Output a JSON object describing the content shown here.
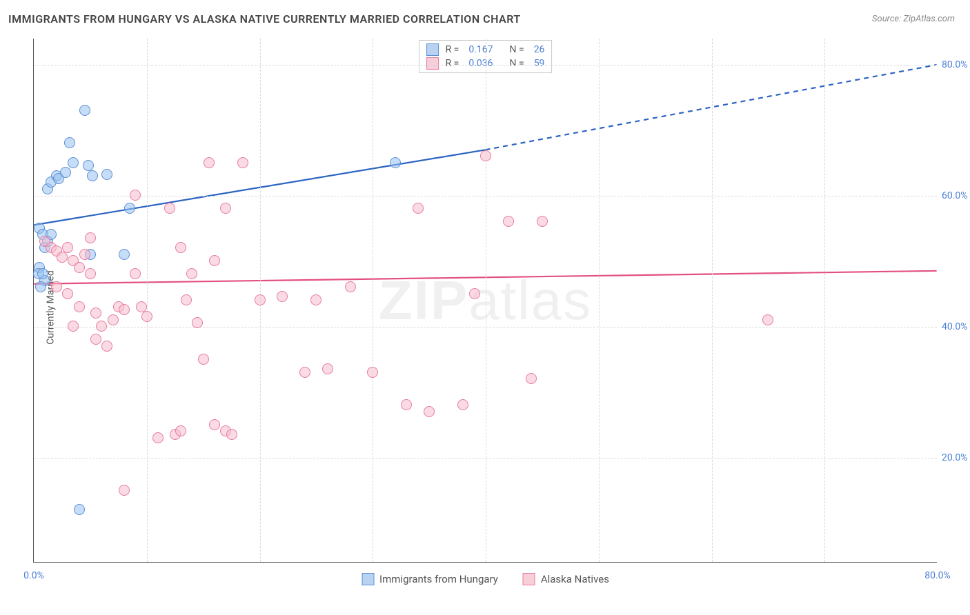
{
  "title": "IMMIGRANTS FROM HUNGARY VS ALASKA NATIVE CURRENTLY MARRIED CORRELATION CHART",
  "source_prefix": "Source: ",
  "source": "ZipAtlas.com",
  "watermark_bold": "ZIP",
  "watermark_rest": "atlas",
  "y_axis_label": "Currently Married",
  "axes": {
    "x_min": 0,
    "x_max": 80,
    "y_min": 4,
    "y_max": 84,
    "y_ticks": [
      20,
      40,
      60,
      80
    ],
    "y_tick_labels": [
      "20.0%",
      "40.0%",
      "60.0%",
      "80.0%"
    ],
    "x_ticks": [
      0,
      80
    ],
    "x_tick_labels": [
      "0.0%",
      "80.0%"
    ],
    "x_minor_grid": [
      10,
      20,
      30,
      40,
      50,
      60,
      70
    ],
    "grid_color": "#d8d8d8",
    "tick_label_color": "#4a7fd6",
    "tick_label_fontsize": 14
  },
  "legend_top": {
    "r_label": "R  =",
    "n_label": "N  =",
    "rows": [
      {
        "swatch_fill": "#b9d2f1",
        "swatch_border": "#5d8fd4",
        "r": "0.167",
        "n": "26"
      },
      {
        "swatch_fill": "#f7cfd9",
        "swatch_border": "#e77ba0",
        "r": "0.036",
        "n": "59"
      }
    ]
  },
  "legend_bottom": {
    "items": [
      {
        "swatch_fill": "#b9d2f1",
        "swatch_border": "#5d8fd4",
        "label": "Immigrants from Hungary"
      },
      {
        "swatch_fill": "#f7cfd9",
        "swatch_border": "#e77ba0",
        "label": "Alaska Natives"
      }
    ]
  },
  "series": [
    {
      "name": "hungary",
      "marker_fill": "rgba(151,193,240,0.55)",
      "marker_stroke": "#5d8fd4",
      "marker_radius": 8,
      "trend": {
        "x1": 0,
        "y1": 55.5,
        "x2": 40,
        "y2": 67.0,
        "x2_ext": 80,
        "y2_ext": 80.0,
        "color": "#2c63c3",
        "width": 2.2
      },
      "points": [
        [
          0.5,
          55
        ],
        [
          0.8,
          54
        ],
        [
          0.5,
          49
        ],
        [
          0.4,
          48
        ],
        [
          1.0,
          47
        ],
        [
          1.0,
          52
        ],
        [
          1.2,
          53
        ],
        [
          1.5,
          54
        ],
        [
          1.2,
          61
        ],
        [
          1.5,
          62
        ],
        [
          2.0,
          63
        ],
        [
          2.2,
          62.5
        ],
        [
          2.8,
          63.5
        ],
        [
          4.5,
          73
        ],
        [
          3.2,
          68
        ],
        [
          3.5,
          65
        ],
        [
          4.8,
          64.5
        ],
        [
          5.2,
          63
        ],
        [
          6.5,
          63.2
        ],
        [
          5.0,
          51
        ],
        [
          8.0,
          51
        ],
        [
          8.5,
          58
        ],
        [
          4.0,
          12
        ],
        [
          32.0,
          65
        ],
        [
          0.8,
          48
        ],
        [
          0.6,
          46
        ]
      ]
    },
    {
      "name": "alaska",
      "marker_fill": "rgba(245,190,206,0.55)",
      "marker_stroke": "#e77ba0",
      "marker_radius": 8,
      "trend": {
        "x1": 0,
        "y1": 46.5,
        "x2": 80,
        "y2": 48.5,
        "color": "#e3507f",
        "width": 2.2
      },
      "points": [
        [
          1.0,
          53
        ],
        [
          1.5,
          52
        ],
        [
          2.0,
          51.5
        ],
        [
          2.5,
          50.5
        ],
        [
          3.0,
          52
        ],
        [
          3.5,
          50
        ],
        [
          4.0,
          49
        ],
        [
          4.5,
          51
        ],
        [
          5.0,
          53.5
        ],
        [
          5.0,
          48
        ],
        [
          3.0,
          45
        ],
        [
          4.0,
          43
        ],
        [
          5.5,
          42
        ],
        [
          6.0,
          40
        ],
        [
          7.0,
          41
        ],
        [
          7.5,
          43
        ],
        [
          8.0,
          42.5
        ],
        [
          9.0,
          48
        ],
        [
          9.5,
          43
        ],
        [
          10.0,
          41.5
        ],
        [
          5.5,
          38
        ],
        [
          6.5,
          37
        ],
        [
          8.0,
          15
        ],
        [
          9.0,
          60
        ],
        [
          12.0,
          58
        ],
        [
          13.0,
          52
        ],
        [
          14.0,
          48
        ],
        [
          15.5,
          65
        ],
        [
          16.0,
          50
        ],
        [
          17.0,
          58
        ],
        [
          18.5,
          65
        ],
        [
          13.5,
          44
        ],
        [
          14.5,
          40.5
        ],
        [
          15.0,
          35
        ],
        [
          16.0,
          25
        ],
        [
          17.0,
          24
        ],
        [
          17.5,
          23.5
        ],
        [
          20.0,
          44
        ],
        [
          22.0,
          44.5
        ],
        [
          24.0,
          33
        ],
        [
          25.0,
          44
        ],
        [
          26.0,
          33.5
        ],
        [
          28.0,
          46
        ],
        [
          30.0,
          33
        ],
        [
          33.0,
          28
        ],
        [
          34.0,
          58
        ],
        [
          35.0,
          27
        ],
        [
          38.0,
          28
        ],
        [
          39.0,
          45
        ],
        [
          40.0,
          66
        ],
        [
          42.0,
          56
        ],
        [
          45.0,
          56
        ],
        [
          44.0,
          32
        ],
        [
          65.0,
          41
        ],
        [
          11.0,
          23
        ],
        [
          12.5,
          23.5
        ],
        [
          13.0,
          24
        ],
        [
          3.5,
          40
        ],
        [
          2.0,
          46
        ]
      ]
    }
  ],
  "colors": {
    "background": "#ffffff",
    "title": "#444444",
    "source": "#888888",
    "axis_line": "#555555"
  }
}
